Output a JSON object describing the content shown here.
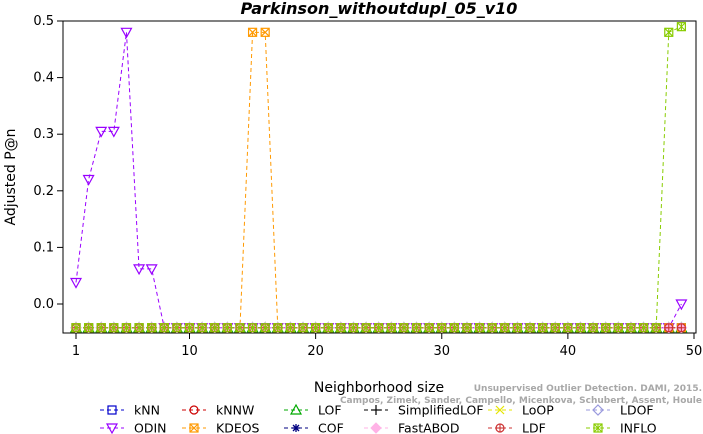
{
  "chart_data": {
    "type": "line",
    "title": "Parkinson_withoutdupl_05_v10",
    "xlabel": "Neighborhood size",
    "ylabel": "Adjusted P@n",
    "xlim": [
      1,
      50
    ],
    "ylim": [
      -0.05,
      0.5
    ],
    "xticks": [
      "1",
      "10",
      "20",
      "30",
      "40",
      "50"
    ],
    "yticks": [
      "0.0",
      "0.1",
      "0.2",
      "0.3",
      "0.4",
      "0.5"
    ],
    "x": [
      1,
      2,
      3,
      4,
      5,
      6,
      7,
      8,
      9,
      10,
      11,
      12,
      13,
      14,
      15,
      16,
      17,
      18,
      19,
      20,
      21,
      22,
      23,
      24,
      25,
      26,
      27,
      28,
      29,
      30,
      31,
      32,
      33,
      34,
      35,
      36,
      37,
      38,
      39,
      40,
      41,
      42,
      43,
      44,
      45,
      46,
      47,
      48,
      49
    ],
    "series": [
      {
        "name": "kNN",
        "color": "#0000cc",
        "marker": "square",
        "values": [
          -0.042,
          -0.042,
          -0.042,
          -0.042,
          -0.042,
          -0.042,
          -0.042,
          -0.042,
          -0.042,
          -0.042,
          -0.042,
          -0.042,
          -0.042,
          -0.042,
          -0.042,
          -0.042,
          -0.042,
          -0.042,
          -0.042,
          -0.042,
          -0.042,
          -0.042,
          -0.042,
          -0.042,
          -0.042,
          -0.042,
          -0.042,
          -0.042,
          -0.042,
          -0.042,
          -0.042,
          -0.042,
          -0.042,
          -0.042,
          -0.042,
          -0.042,
          -0.042,
          -0.042,
          -0.042,
          -0.042,
          -0.042,
          -0.042,
          -0.042,
          -0.042,
          -0.042,
          -0.042,
          -0.042,
          -0.042,
          -0.042
        ]
      },
      {
        "name": "kNNW",
        "color": "#cc0000",
        "marker": "circle",
        "values": [
          -0.042,
          -0.042,
          -0.042,
          -0.042,
          -0.042,
          -0.042,
          -0.042,
          -0.042,
          -0.042,
          -0.042,
          -0.042,
          -0.042,
          -0.042,
          -0.042,
          -0.042,
          -0.042,
          -0.042,
          -0.042,
          -0.042,
          -0.042,
          -0.042,
          -0.042,
          -0.042,
          -0.042,
          -0.042,
          -0.042,
          -0.042,
          -0.042,
          -0.042,
          -0.042,
          -0.042,
          -0.042,
          -0.042,
          -0.042,
          -0.042,
          -0.042,
          -0.042,
          -0.042,
          -0.042,
          -0.042,
          -0.042,
          -0.042,
          -0.042,
          -0.042,
          -0.042,
          -0.042,
          -0.042,
          -0.042,
          -0.042
        ]
      },
      {
        "name": "LOF",
        "color": "#00aa00",
        "marker": "triangle-up",
        "values": [
          -0.042,
          -0.042,
          -0.042,
          -0.042,
          -0.042,
          -0.042,
          -0.042,
          -0.042,
          -0.042,
          -0.042,
          -0.042,
          -0.042,
          -0.042,
          -0.042,
          -0.042,
          -0.042,
          -0.042,
          -0.042,
          -0.042,
          -0.042,
          -0.042,
          -0.042,
          -0.042,
          -0.042,
          -0.042,
          -0.042,
          -0.042,
          -0.042,
          -0.042,
          -0.042,
          -0.042,
          -0.042,
          -0.042,
          -0.042,
          -0.042,
          -0.042,
          -0.042,
          -0.042,
          -0.042,
          -0.042,
          -0.042,
          -0.042,
          -0.042,
          -0.042,
          -0.042,
          -0.042,
          -0.042,
          -0.042,
          -0.042
        ]
      },
      {
        "name": "SimplifiedLOF",
        "color": "#000000",
        "marker": "plus",
        "values": [
          -0.042,
          -0.042,
          -0.042,
          -0.042,
          -0.042,
          -0.042,
          -0.042,
          -0.042,
          -0.042,
          -0.042,
          -0.042,
          -0.042,
          -0.042,
          -0.042,
          -0.042,
          -0.042,
          -0.042,
          -0.042,
          -0.042,
          -0.042,
          -0.042,
          -0.042,
          -0.042,
          -0.042,
          -0.042,
          -0.042,
          -0.042,
          -0.042,
          -0.042,
          -0.042,
          -0.042,
          -0.042,
          -0.042,
          -0.042,
          -0.042,
          -0.042,
          -0.042,
          -0.042,
          -0.042,
          -0.042,
          -0.042,
          -0.042,
          -0.042,
          -0.042,
          -0.042,
          -0.042,
          -0.042,
          -0.042,
          -0.042
        ]
      },
      {
        "name": "LoOP",
        "color": "#e6e600",
        "marker": "x",
        "values": [
          -0.042,
          -0.042,
          -0.042,
          -0.042,
          -0.042,
          -0.042,
          -0.042,
          -0.042,
          -0.042,
          -0.042,
          -0.042,
          -0.042,
          -0.042,
          -0.042,
          -0.042,
          -0.042,
          -0.042,
          -0.042,
          -0.042,
          -0.042,
          -0.042,
          -0.042,
          -0.042,
          -0.042,
          -0.042,
          -0.042,
          -0.042,
          -0.042,
          -0.042,
          -0.042,
          -0.042,
          -0.042,
          -0.042,
          -0.042,
          -0.042,
          -0.042,
          -0.042,
          -0.042,
          -0.042,
          -0.042,
          -0.042,
          -0.042,
          -0.042,
          -0.042,
          -0.042,
          -0.042,
          -0.042,
          -0.042,
          -0.042
        ]
      },
      {
        "name": "LDOF",
        "color": "#9999dd",
        "marker": "diamond",
        "values": [
          -0.042,
          -0.042,
          -0.042,
          -0.042,
          -0.042,
          -0.042,
          -0.042,
          -0.042,
          -0.042,
          -0.042,
          -0.042,
          -0.042,
          -0.042,
          -0.042,
          -0.042,
          -0.042,
          -0.042,
          -0.042,
          -0.042,
          -0.042,
          -0.042,
          -0.042,
          -0.042,
          -0.042,
          -0.042,
          -0.042,
          -0.042,
          -0.042,
          -0.042,
          -0.042,
          -0.042,
          -0.042,
          -0.042,
          -0.042,
          -0.042,
          -0.042,
          -0.042,
          -0.042,
          -0.042,
          -0.042,
          -0.042,
          -0.042,
          -0.042,
          -0.042,
          -0.042,
          -0.042,
          -0.042,
          -0.042,
          -0.042
        ]
      },
      {
        "name": "ODIN",
        "color": "#9900ff",
        "marker": "triangle-down",
        "values": [
          0.038,
          0.22,
          0.305,
          0.305,
          0.48,
          0.062,
          0.062,
          -0.042,
          -0.042,
          -0.042,
          -0.042,
          -0.042,
          -0.042,
          -0.042,
          -0.042,
          -0.042,
          -0.042,
          -0.042,
          -0.042,
          -0.042,
          -0.042,
          -0.042,
          -0.042,
          -0.042,
          -0.042,
          -0.042,
          -0.042,
          -0.042,
          -0.042,
          -0.042,
          -0.042,
          -0.042,
          -0.042,
          -0.042,
          -0.042,
          -0.042,
          -0.042,
          -0.042,
          -0.042,
          -0.042,
          -0.042,
          -0.042,
          -0.042,
          -0.042,
          -0.042,
          -0.042,
          -0.042,
          -0.042,
          0.0
        ]
      },
      {
        "name": "KDEOS",
        "color": "#ff9900",
        "marker": "square-x",
        "values": [
          -0.042,
          -0.042,
          -0.042,
          -0.042,
          -0.042,
          -0.042,
          -0.042,
          -0.042,
          -0.042,
          -0.042,
          -0.042,
          -0.042,
          -0.042,
          -0.042,
          0.48,
          0.48,
          -0.042,
          -0.042,
          -0.042,
          -0.042,
          -0.042,
          -0.042,
          -0.042,
          -0.042,
          -0.042,
          -0.042,
          -0.042,
          -0.042,
          -0.042,
          -0.042,
          -0.042,
          -0.042,
          -0.042,
          -0.042,
          -0.042,
          -0.042,
          -0.042,
          -0.042,
          -0.042,
          -0.042,
          -0.042,
          -0.042,
          -0.042,
          -0.042,
          -0.042,
          -0.042,
          -0.042,
          -0.042,
          -0.042
        ]
      },
      {
        "name": "COF",
        "color": "#000080",
        "marker": "star",
        "values": [
          -0.042,
          -0.042,
          -0.042,
          -0.042,
          -0.042,
          -0.042,
          -0.042,
          -0.042,
          -0.042,
          -0.042,
          -0.042,
          -0.042,
          -0.042,
          -0.042,
          -0.042,
          -0.042,
          -0.042,
          -0.042,
          -0.042,
          -0.042,
          -0.042,
          -0.042,
          -0.042,
          -0.042,
          -0.042,
          -0.042,
          -0.042,
          -0.042,
          -0.042,
          -0.042,
          -0.042,
          -0.042,
          -0.042,
          -0.042,
          -0.042,
          -0.042,
          -0.042,
          -0.042,
          -0.042,
          -0.042,
          -0.042,
          -0.042,
          -0.042,
          -0.042,
          -0.042,
          -0.042,
          -0.042,
          -0.042,
          -0.042
        ]
      },
      {
        "name": "FastABOD",
        "color": "#ffb3e6",
        "marker": "diamond-filled",
        "values": [
          -0.042,
          -0.042,
          -0.042,
          -0.042,
          -0.042,
          -0.042,
          -0.042,
          -0.042,
          -0.042,
          -0.042,
          -0.042,
          -0.042,
          -0.042,
          -0.042,
          -0.042,
          -0.042,
          -0.042,
          -0.042,
          -0.042,
          -0.042,
          -0.042,
          -0.042,
          -0.042,
          -0.042,
          -0.042,
          -0.042,
          -0.042,
          -0.042,
          -0.042,
          -0.042,
          -0.042,
          -0.042,
          -0.042,
          -0.042,
          -0.042,
          -0.042,
          -0.042,
          -0.042,
          -0.042,
          -0.042,
          -0.042,
          -0.042,
          -0.042,
          -0.042,
          -0.042,
          -0.042,
          -0.042,
          -0.042,
          -0.042
        ]
      },
      {
        "name": "LDF",
        "color": "#cc3333",
        "marker": "circle-plus",
        "values": [
          -0.042,
          -0.042,
          -0.042,
          -0.042,
          -0.042,
          -0.042,
          -0.042,
          -0.042,
          -0.042,
          -0.042,
          -0.042,
          -0.042,
          -0.042,
          -0.042,
          -0.042,
          -0.042,
          -0.042,
          -0.042,
          -0.042,
          -0.042,
          -0.042,
          -0.042,
          -0.042,
          -0.042,
          -0.042,
          -0.042,
          -0.042,
          -0.042,
          -0.042,
          -0.042,
          -0.042,
          -0.042,
          -0.042,
          -0.042,
          -0.042,
          -0.042,
          -0.042,
          -0.042,
          -0.042,
          -0.042,
          -0.042,
          -0.042,
          -0.042,
          -0.042,
          -0.042,
          -0.042,
          -0.042,
          -0.042,
          -0.042
        ]
      },
      {
        "name": "INFLO",
        "color": "#88cc00",
        "marker": "square-star",
        "values": [
          -0.042,
          -0.042,
          -0.042,
          -0.042,
          -0.042,
          -0.042,
          -0.042,
          -0.042,
          -0.042,
          -0.042,
          -0.042,
          -0.042,
          -0.042,
          -0.042,
          -0.042,
          -0.042,
          -0.042,
          -0.042,
          -0.042,
          -0.042,
          -0.042,
          -0.042,
          -0.042,
          -0.042,
          -0.042,
          -0.042,
          -0.042,
          -0.042,
          -0.042,
          -0.042,
          -0.042,
          -0.042,
          -0.042,
          -0.042,
          -0.042,
          -0.042,
          -0.042,
          -0.042,
          -0.042,
          -0.042,
          -0.042,
          -0.042,
          -0.042,
          -0.042,
          -0.042,
          -0.042,
          -0.042,
          0.48,
          0.49
        ]
      }
    ],
    "legend_order": [
      "kNN",
      "kNNW",
      "LOF",
      "SimplifiedLOF",
      "LoOP",
      "LDOF",
      "ODIN",
      "KDEOS",
      "COF",
      "FastABOD",
      "LDF",
      "INFLO"
    ],
    "legend_position": "bottom",
    "grid": false,
    "annotation": [
      "Unsupervised Outlier Detection. DAMI, 2015.",
      "Campos, Zimek, Sander, Campello, Micenkova, Schubert, Assent, Houle"
    ]
  }
}
